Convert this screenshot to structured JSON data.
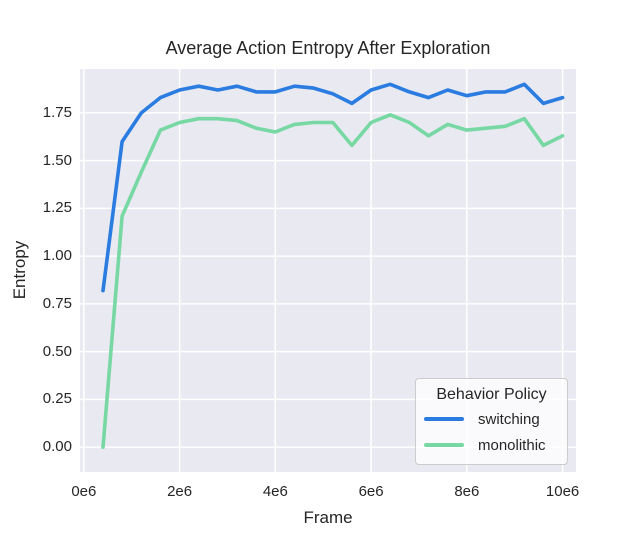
{
  "colors": {
    "figure_bg": "#ffffff",
    "plot_bg": "#e9e9f1",
    "grid": "#ffffff",
    "text": "#262626",
    "legend_border": "#cccccc",
    "series_switching": "#2b7ce0",
    "series_monolithic": "#77d8a4"
  },
  "chart_data": {
    "type": "line",
    "title": "Average Action Entropy After Exploration",
    "xlabel": "Frame",
    "ylabel": "Entropy",
    "grid": true,
    "x_unit": "1e6 frames",
    "xlim_e6": [
      -0.08,
      10.28
    ],
    "ylim": [
      -0.13,
      1.98
    ],
    "x_ticks": [
      {
        "v": 0,
        "label": "0e6"
      },
      {
        "v": 2,
        "label": "2e6"
      },
      {
        "v": 4,
        "label": "4e6"
      },
      {
        "v": 6,
        "label": "6e6"
      },
      {
        "v": 8,
        "label": "8e6"
      },
      {
        "v": 10,
        "label": "10e6"
      }
    ],
    "y_ticks": [
      {
        "v": 0.0,
        "label": "0.00"
      },
      {
        "v": 0.25,
        "label": "0.25"
      },
      {
        "v": 0.5,
        "label": "0.50"
      },
      {
        "v": 0.75,
        "label": "0.75"
      },
      {
        "v": 1.0,
        "label": "1.00"
      },
      {
        "v": 1.25,
        "label": "1.25"
      },
      {
        "v": 1.5,
        "label": "1.50"
      },
      {
        "v": 1.75,
        "label": "1.75"
      }
    ],
    "x_e6": [
      0.4,
      0.8,
      1.2,
      1.6,
      2.0,
      2.4,
      2.8,
      3.2,
      3.6,
      4.0,
      4.4,
      4.8,
      5.2,
      5.6,
      6.0,
      6.4,
      6.8,
      7.2,
      7.6,
      8.0,
      8.4,
      8.8,
      9.2,
      9.6,
      10.0
    ],
    "series": [
      {
        "name": "switching",
        "color": "#2b7ce0",
        "values": [
          0.82,
          1.6,
          1.75,
          1.83,
          1.87,
          1.89,
          1.87,
          1.89,
          1.86,
          1.86,
          1.89,
          1.88,
          1.85,
          1.8,
          1.87,
          1.9,
          1.86,
          1.83,
          1.87,
          1.84,
          1.86,
          1.86,
          1.9,
          1.8,
          1.83
        ]
      },
      {
        "name": "monolithic",
        "color": "#77d8a4",
        "values": [
          0.0,
          1.21,
          1.44,
          1.66,
          1.7,
          1.72,
          1.72,
          1.71,
          1.67,
          1.65,
          1.69,
          1.7,
          1.7,
          1.58,
          1.7,
          1.74,
          1.7,
          1.63,
          1.69,
          1.66,
          1.67,
          1.68,
          1.72,
          1.58,
          1.63
        ]
      }
    ],
    "legend": {
      "title": "Behavior Policy",
      "position": "lower right"
    }
  }
}
